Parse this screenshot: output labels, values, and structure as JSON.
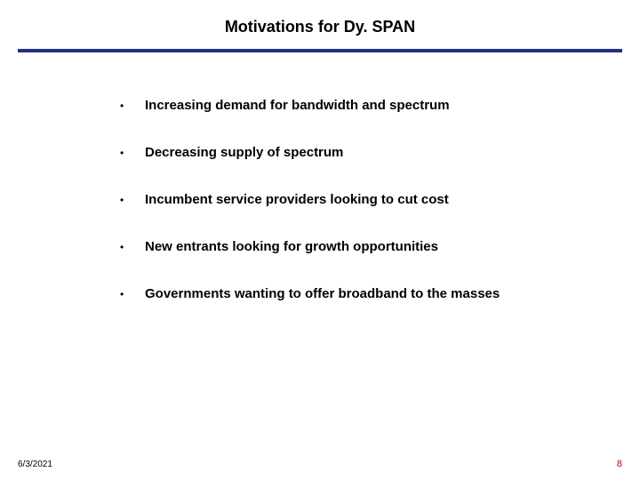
{
  "slide": {
    "title": "Motivations for Dy. SPAN",
    "title_color": "#000000",
    "title_fontsize": 18,
    "divider_color": "#1f2f7f",
    "background_color": "#ffffff",
    "bullets": [
      {
        "text": "Increasing demand for bandwidth and spectrum"
      },
      {
        "text": "Decreasing supply of spectrum"
      },
      {
        "text": "Incumbent service providers looking to cut cost"
      },
      {
        "text": "New entrants looking for growth opportunities"
      },
      {
        "text": "Governments wanting to offer broadband to the masses"
      }
    ],
    "bullet_marker": "•",
    "bullet_fontsize": 15,
    "bullet_fontweight": "bold",
    "bullet_color": "#000000",
    "footer": {
      "date": "6/3/2021",
      "date_color": "#000000",
      "page_number": "8",
      "page_number_color": "#c00000"
    }
  }
}
